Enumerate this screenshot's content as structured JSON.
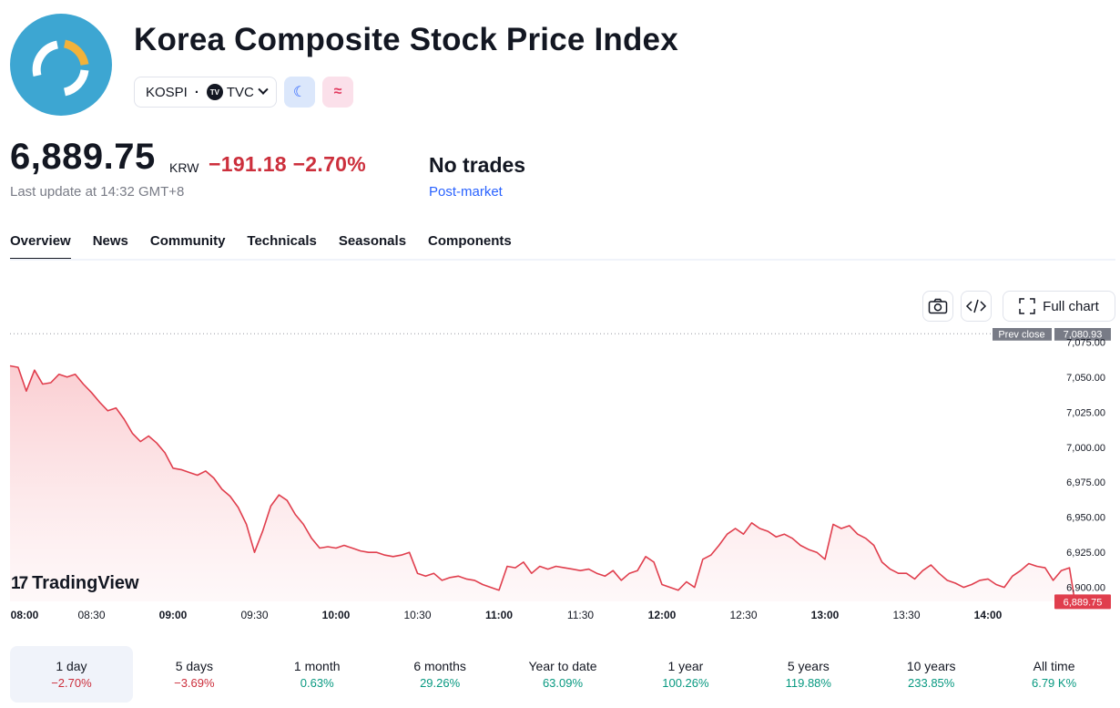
{
  "header": {
    "title": "Korea Composite Stock Price Index",
    "symbol": "KOSPI",
    "exchange": "TVC",
    "logo_icon": "kospi-logo-icon",
    "logo_color": "#3da6d2"
  },
  "quote": {
    "price": "6,889.75",
    "currency": "KRW",
    "change": "−191.18 −2.70%",
    "last_update": "Last update at 14:32 GMT+8",
    "status": "No trades",
    "session": "Post-market",
    "change_color": "#cc2f3c"
  },
  "tabs": [
    {
      "label": "Overview",
      "active": true
    },
    {
      "label": "News"
    },
    {
      "label": "Community"
    },
    {
      "label": "Technicals"
    },
    {
      "label": "Seasonals"
    },
    {
      "label": "Components"
    }
  ],
  "toolbar": {
    "camera_icon": "camera-icon",
    "embed_icon": "embed-code-icon",
    "full_chart_label": "Full chart"
  },
  "brand": {
    "name": "TradingView"
  },
  "chart_data": {
    "type": "area",
    "x_ticks": [
      "08:00",
      "08:30",
      "09:00",
      "09:30",
      "10:00",
      "10:30",
      "11:00",
      "11:30",
      "12:00",
      "12:30",
      "13:00",
      "13:30",
      "14:00"
    ],
    "y_ticks": [
      "6,900.00",
      "6,925.00",
      "6,950.00",
      "6,975.00",
      "7,000.00",
      "7,025.00",
      "7,050.00",
      "7,075.00"
    ],
    "ylim": [
      6890,
      7085
    ],
    "prev_close_label": "Prev close",
    "prev_close": 7080.93,
    "prev_close_text": "7,080.93",
    "last_value": 6889.75,
    "last_value_text": "6,889.75",
    "line_color": "#e03e4d",
    "grid": false,
    "series": [
      {
        "x": [
          "08:00",
          "08:03",
          "08:06",
          "08:09",
          "08:12",
          "08:15",
          "08:18",
          "08:21",
          "08:24",
          "08:27",
          "08:30",
          "08:33",
          "08:36",
          "08:39",
          "08:42",
          "08:45",
          "08:48",
          "08:51",
          "08:54",
          "08:57",
          "09:00",
          "09:03",
          "09:06",
          "09:09",
          "09:12",
          "09:15",
          "09:18",
          "09:21",
          "09:24",
          "09:27",
          "09:30",
          "09:33",
          "09:36",
          "09:39",
          "09:42",
          "09:45",
          "09:48",
          "09:51",
          "09:54",
          "09:57",
          "10:00",
          "10:03",
          "10:06",
          "10:09",
          "10:12",
          "10:15",
          "10:18",
          "10:21",
          "10:24",
          "10:27",
          "10:30",
          "10:33",
          "10:36",
          "10:39",
          "10:42",
          "10:45",
          "10:48",
          "10:51",
          "10:54",
          "10:57",
          "11:00",
          "11:03",
          "11:06",
          "11:09",
          "11:12",
          "11:15",
          "11:18",
          "11:21",
          "11:24",
          "11:27",
          "11:30",
          "11:33",
          "11:36",
          "11:39",
          "11:42",
          "11:45",
          "11:48",
          "11:51",
          "11:54",
          "11:57",
          "12:00",
          "12:03",
          "12:06",
          "12:09",
          "12:12",
          "12:15",
          "12:18",
          "12:21",
          "12:24",
          "12:27",
          "12:30",
          "12:33",
          "12:36",
          "12:39",
          "12:42",
          "12:45",
          "12:48",
          "12:51",
          "12:54",
          "12:57",
          "13:00",
          "13:03",
          "13:06",
          "13:09",
          "13:12",
          "13:15",
          "13:18",
          "13:21",
          "13:24",
          "13:27",
          "13:30",
          "13:33",
          "13:36",
          "13:39",
          "13:42",
          "13:45",
          "13:48",
          "13:51",
          "13:54",
          "13:57",
          "14:00",
          "14:03",
          "14:06",
          "14:09",
          "14:12",
          "14:15",
          "14:18",
          "14:21",
          "14:24",
          "14:27",
          "14:30",
          "14:32"
        ],
        "values": [
          7058,
          7057,
          7040,
          7055,
          7045,
          7046,
          7052,
          7050,
          7052,
          7045,
          7039,
          7032,
          7026,
          7028,
          7020,
          7010,
          7004,
          7008,
          7003,
          6996,
          6985,
          6984,
          6982,
          6980,
          6983,
          6978,
          6970,
          6965,
          6957,
          6945,
          6925,
          6940,
          6958,
          6966,
          6962,
          6952,
          6945,
          6935,
          6928,
          6929,
          6928,
          6930,
          6928,
          6926,
          6925,
          6925,
          6923,
          6922,
          6923,
          6925,
          6910,
          6908,
          6910,
          6905,
          6907,
          6908,
          6906,
          6905,
          6902,
          6900,
          6898,
          6915,
          6914,
          6918,
          6910,
          6915,
          6913,
          6915,
          6914,
          6913,
          6912,
          6913,
          6910,
          6908,
          6912,
          6905,
          6910,
          6912,
          6922,
          6918,
          6902,
          6900,
          6898,
          6904,
          6900,
          6920,
          6923,
          6930,
          6938,
          6942,
          6938,
          6946,
          6942,
          6940,
          6936,
          6938,
          6935,
          6930,
          6927,
          6925,
          6920,
          6945,
          6942,
          6944,
          6938,
          6935,
          6930,
          6918,
          6913,
          6910,
          6910,
          6906,
          6912,
          6916,
          6910,
          6905,
          6903,
          6900,
          6902,
          6905,
          6906,
          6902,
          6900,
          6908,
          6912,
          6917,
          6915,
          6914,
          6905,
          6912,
          6914,
          6889.75
        ]
      }
    ]
  },
  "ranges": [
    {
      "label": "1 day",
      "value": "−2.70%",
      "dir": "neg",
      "active": true
    },
    {
      "label": "5 days",
      "value": "−3.69%",
      "dir": "neg"
    },
    {
      "label": "1 month",
      "value": "0.63%",
      "dir": "pos"
    },
    {
      "label": "6 months",
      "value": "29.26%",
      "dir": "pos"
    },
    {
      "label": "Year to date",
      "value": "63.09%",
      "dir": "pos"
    },
    {
      "label": "1 year",
      "value": "100.26%",
      "dir": "pos"
    },
    {
      "label": "5 years",
      "value": "119.88%",
      "dir": "pos"
    },
    {
      "label": "10 years",
      "value": "233.85%",
      "dir": "pos"
    },
    {
      "label": "All time",
      "value": "6.79 K%",
      "dir": "pos"
    }
  ]
}
